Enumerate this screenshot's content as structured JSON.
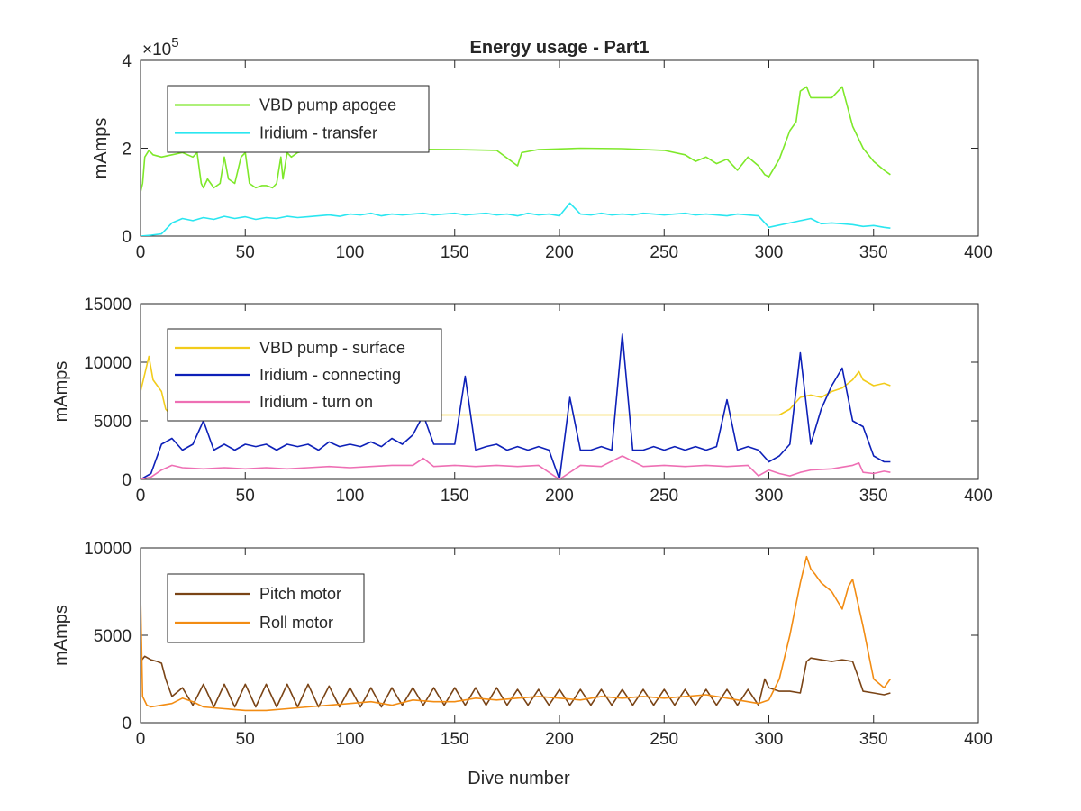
{
  "chart_data": [
    {
      "type": "line",
      "title": "Energy usage - Part1",
      "ylabel": "mAmps",
      "xlabel": "",
      "xlim": [
        0,
        400
      ],
      "ylim": [
        0,
        400000
      ],
      "y_exponent_label": "×10",
      "y_exponent_power": "5",
      "x_ticks": [
        "0",
        "50",
        "100",
        "150",
        "200",
        "250",
        "300",
        "350",
        "400"
      ],
      "y_ticks": [
        {
          "value": 0,
          "label": "0"
        },
        {
          "value": 200000,
          "label": "2"
        },
        {
          "value": 400000,
          "label": "4"
        }
      ],
      "grid": false,
      "legend": "top-left",
      "series": [
        {
          "name": "VBD pump apogee",
          "color": "#7ee82a",
          "x": [
            0,
            1,
            2,
            4,
            6,
            10,
            15,
            20,
            25,
            27,
            29,
            30,
            32,
            35,
            38,
            40,
            42,
            45,
            48,
            50,
            52,
            55,
            58,
            60,
            63,
            65,
            67,
            68,
            70,
            72,
            75,
            80,
            100,
            120,
            150,
            170,
            180,
            182,
            190,
            210,
            230,
            250,
            260,
            265,
            270,
            275,
            280,
            285,
            290,
            295,
            298,
            300,
            305,
            310,
            313,
            315,
            318,
            320,
            325,
            330,
            335,
            340,
            345,
            350,
            355,
            358
          ],
          "y": [
            100000,
            120000,
            180000,
            195000,
            185000,
            180000,
            185000,
            190000,
            180000,
            190000,
            120000,
            110000,
            130000,
            110000,
            120000,
            180000,
            130000,
            120000,
            180000,
            190000,
            120000,
            110000,
            115000,
            115000,
            110000,
            120000,
            180000,
            130000,
            190000,
            180000,
            190000,
            195000,
            200000,
            198000,
            197000,
            195000,
            160000,
            190000,
            197000,
            200000,
            199000,
            195000,
            185000,
            170000,
            180000,
            165000,
            175000,
            150000,
            180000,
            160000,
            140000,
            135000,
            175000,
            240000,
            260000,
            330000,
            340000,
            315000,
            315000,
            315000,
            340000,
            250000,
            200000,
            170000,
            150000,
            140000
          ]
        },
        {
          "name": "Iridium - transfer",
          "color": "#2ae6f0",
          "x": [
            0,
            5,
            10,
            15,
            20,
            25,
            30,
            35,
            40,
            45,
            50,
            55,
            60,
            65,
            70,
            75,
            80,
            85,
            90,
            95,
            100,
            105,
            110,
            115,
            120,
            125,
            130,
            135,
            140,
            145,
            150,
            155,
            160,
            165,
            170,
            175,
            180,
            185,
            190,
            195,
            200,
            205,
            210,
            215,
            220,
            225,
            230,
            235,
            240,
            245,
            250,
            255,
            260,
            265,
            270,
            275,
            280,
            285,
            290,
            295,
            300,
            305,
            310,
            315,
            320,
            325,
            330,
            335,
            340,
            345,
            350,
            355,
            358
          ],
          "y": [
            0,
            2000,
            5000,
            30000,
            40000,
            35000,
            42000,
            38000,
            45000,
            40000,
            44000,
            38000,
            42000,
            40000,
            45000,
            42000,
            44000,
            46000,
            48000,
            45000,
            50000,
            48000,
            52000,
            46000,
            50000,
            48000,
            50000,
            52000,
            48000,
            50000,
            52000,
            48000,
            50000,
            52000,
            48000,
            50000,
            46000,
            52000,
            48000,
            50000,
            46000,
            75000,
            50000,
            48000,
            52000,
            48000,
            50000,
            48000,
            52000,
            50000,
            48000,
            50000,
            52000,
            48000,
            50000,
            48000,
            46000,
            50000,
            48000,
            46000,
            20000,
            25000,
            30000,
            35000,
            40000,
            28000,
            30000,
            28000,
            26000,
            22000,
            24000,
            20000,
            18000
          ]
        }
      ]
    },
    {
      "type": "line",
      "title": "",
      "ylabel": "mAmps",
      "xlabel": "",
      "xlim": [
        0,
        400
      ],
      "ylim": [
        0,
        15000
      ],
      "x_ticks": [
        "0",
        "50",
        "100",
        "150",
        "200",
        "250",
        "300",
        "350",
        "400"
      ],
      "y_ticks": [
        {
          "value": 0,
          "label": "0"
        },
        {
          "value": 5000,
          "label": "5000"
        },
        {
          "value": 10000,
          "label": "10000"
        },
        {
          "value": 15000,
          "label": "15000"
        }
      ],
      "grid": false,
      "legend": "top-left",
      "series": [
        {
          "name": "VBD pump - surface",
          "color": "#f2cc1b",
          "x": [
            0,
            2,
            4,
            6,
            8,
            10,
            12,
            15,
            20,
            30,
            50,
            100,
            150,
            195,
            200,
            205,
            210,
            250,
            290,
            295,
            300,
            305,
            310,
            315,
            320,
            325,
            330,
            335,
            340,
            343,
            345,
            350,
            355,
            358
          ],
          "y": [
            7500,
            9000,
            10500,
            8500,
            8000,
            7500,
            6000,
            5400,
            5500,
            5500,
            5500,
            5500,
            5500,
            5500,
            5500,
            5500,
            5500,
            5500,
            5500,
            5500,
            5500,
            5500,
            6000,
            7000,
            7200,
            7000,
            7500,
            7800,
            8500,
            9200,
            8500,
            8000,
            8200,
            8000
          ]
        },
        {
          "name": "Iridium - connecting",
          "color": "#0d20b8",
          "x": [
            0,
            5,
            10,
            15,
            20,
            25,
            30,
            35,
            40,
            45,
            50,
            55,
            60,
            65,
            70,
            75,
            80,
            85,
            90,
            95,
            100,
            105,
            110,
            115,
            120,
            125,
            130,
            135,
            140,
            145,
            150,
            155,
            160,
            165,
            170,
            175,
            180,
            185,
            190,
            195,
            200,
            205,
            210,
            215,
            220,
            225,
            230,
            235,
            240,
            245,
            250,
            255,
            260,
            265,
            270,
            275,
            280,
            285,
            290,
            295,
            300,
            305,
            310,
            315,
            320,
            325,
            330,
            335,
            340,
            345,
            350,
            355,
            358
          ],
          "y": [
            0,
            500,
            3000,
            3500,
            2500,
            3000,
            5000,
            2500,
            3000,
            2500,
            3000,
            2800,
            3000,
            2500,
            3000,
            2800,
            3000,
            2500,
            3200,
            2800,
            3000,
            2800,
            3200,
            2800,
            3500,
            3000,
            3800,
            5500,
            3000,
            3000,
            3000,
            8800,
            2500,
            2800,
            3000,
            2500,
            2800,
            2500,
            2800,
            2500,
            0,
            7000,
            2500,
            2500,
            2800,
            2500,
            12400,
            2500,
            2500,
            2800,
            2500,
            2800,
            2500,
            2800,
            2500,
            2800,
            6800,
            2500,
            2800,
            2500,
            1500,
            2000,
            3000,
            10800,
            3000,
            6000,
            8000,
            9500,
            5000,
            4500,
            2000,
            1500,
            1500
          ]
        },
        {
          "name": "Iridium - turn on",
          "color": "#ee6fb4",
          "x": [
            0,
            5,
            10,
            15,
            20,
            30,
            40,
            50,
            60,
            70,
            80,
            90,
            100,
            110,
            120,
            130,
            135,
            140,
            150,
            160,
            170,
            180,
            190,
            200,
            210,
            220,
            230,
            240,
            250,
            260,
            270,
            280,
            290,
            295,
            300,
            305,
            310,
            315,
            320,
            330,
            340,
            343,
            345,
            350,
            355,
            358
          ],
          "y": [
            0,
            200,
            800,
            1200,
            1000,
            900,
            1000,
            900,
            1000,
            900,
            1000,
            1100,
            1000,
            1100,
            1200,
            1200,
            1800,
            1100,
            1200,
            1100,
            1200,
            1100,
            1200,
            0,
            1200,
            1100,
            2000,
            1100,
            1200,
            1100,
            1200,
            1100,
            1200,
            300,
            800,
            500,
            300,
            600,
            800,
            900,
            1200,
            1400,
            600,
            500,
            700,
            600
          ]
        }
      ]
    },
    {
      "type": "line",
      "title": "",
      "ylabel": "mAmps",
      "xlabel": "Dive number",
      "xlim": [
        0,
        400
      ],
      "ylim": [
        0,
        10000
      ],
      "x_ticks": [
        "0",
        "50",
        "100",
        "150",
        "200",
        "250",
        "300",
        "350",
        "400"
      ],
      "y_ticks": [
        {
          "value": 0,
          "label": "0"
        },
        {
          "value": 5000,
          "label": "5000"
        },
        {
          "value": 10000,
          "label": "10000"
        }
      ],
      "grid": false,
      "legend": "top-left",
      "series": [
        {
          "name": "Pitch motor",
          "color": "#7a4416",
          "x": [
            0,
            2,
            5,
            8,
            10,
            12,
            15,
            20,
            25,
            30,
            35,
            40,
            45,
            50,
            55,
            60,
            65,
            70,
            75,
            80,
            85,
            90,
            95,
            100,
            105,
            110,
            115,
            120,
            125,
            130,
            135,
            140,
            145,
            150,
            155,
            160,
            165,
            170,
            175,
            180,
            185,
            190,
            195,
            200,
            205,
            210,
            215,
            220,
            225,
            230,
            235,
            240,
            245,
            250,
            255,
            260,
            265,
            270,
            275,
            280,
            285,
            290,
            295,
            298,
            300,
            305,
            310,
            315,
            318,
            320,
            325,
            330,
            335,
            340,
            343,
            345,
            350,
            355,
            358
          ],
          "y": [
            3500,
            3800,
            3600,
            3500,
            3400,
            2500,
            1500,
            2000,
            1000,
            2200,
            900,
            2200,
            900,
            2200,
            900,
            2200,
            900,
            2200,
            900,
            2200,
            900,
            2100,
            900,
            2000,
            900,
            2000,
            900,
            2000,
            1000,
            2000,
            1000,
            2000,
            1000,
            2000,
            1000,
            2000,
            1000,
            2000,
            1000,
            1900,
            1000,
            1900,
            1000,
            1900,
            1000,
            1900,
            1000,
            1900,
            1000,
            1900,
            1000,
            1900,
            1000,
            1900,
            1000,
            1900,
            1000,
            1900,
            1000,
            1900,
            1000,
            1900,
            1000,
            2500,
            2000,
            1800,
            1800,
            1700,
            3500,
            3700,
            3600,
            3500,
            3600,
            3500,
            2500,
            1800,
            1700,
            1600,
            1700
          ]
        },
        {
          "name": "Roll motor",
          "color": "#f28c13",
          "x": [
            0,
            1,
            3,
            5,
            10,
            15,
            20,
            25,
            30,
            40,
            50,
            60,
            70,
            80,
            90,
            100,
            110,
            120,
            130,
            140,
            150,
            160,
            170,
            180,
            190,
            200,
            210,
            220,
            230,
            240,
            250,
            260,
            270,
            280,
            290,
            295,
            300,
            305,
            310,
            315,
            318,
            320,
            322,
            325,
            330,
            335,
            338,
            340,
            345,
            350,
            355,
            358
          ],
          "y": [
            7300,
            1500,
            1000,
            900,
            1000,
            1100,
            1400,
            1200,
            900,
            800,
            700,
            700,
            800,
            900,
            1000,
            1100,
            1200,
            1000,
            1300,
            1200,
            1200,
            1400,
            1300,
            1400,
            1500,
            1400,
            1300,
            1500,
            1400,
            1500,
            1400,
            1500,
            1600,
            1400,
            1200,
            1100,
            1300,
            2500,
            5000,
            8000,
            9500,
            8800,
            8500,
            8000,
            7500,
            6500,
            7800,
            8200,
            5500,
            2500,
            2000,
            2500
          ]
        }
      ]
    }
  ]
}
